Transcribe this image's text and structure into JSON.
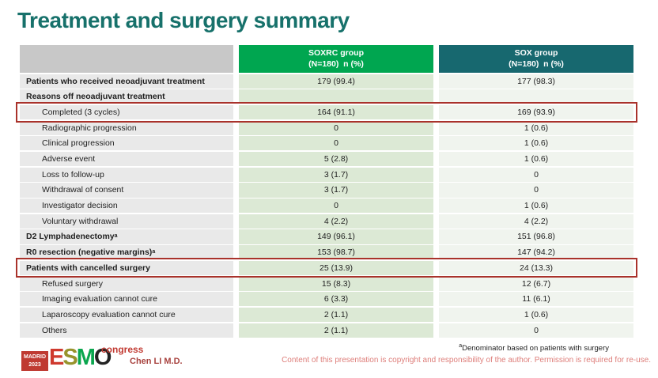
{
  "title": "Treatment and surgery summary",
  "colors": {
    "title": "#17716b",
    "soxrc_header": "#00a650",
    "sox_header": "#17686f",
    "label_header": "#c8c8c8",
    "label_cell": "#e9e9e9",
    "soxrc_cell": "#dce9d5",
    "sox_cell": "#f0f4ee",
    "highlight_border": "#a9322b",
    "badge_red": "#bf3a32",
    "copyright_pink": "#de7e7a"
  },
  "table": {
    "header": {
      "soxrc_name": "SOXRC group",
      "soxrc_sub": "(N=180)  n (%)",
      "sox_name": "SOX group",
      "sox_sub": "(N=180)  n (%)"
    },
    "rows": [
      {
        "label": "Patients who received neoadjuvant treatment",
        "sup": "",
        "bold": true,
        "indent": false,
        "highlight": false,
        "soxrc": "179 (99.4)",
        "sox": "177 (98.3)"
      },
      {
        "label": "Reasons off neoadjuvant treatment",
        "sup": "",
        "bold": true,
        "indent": false,
        "highlight": false,
        "soxrc": "",
        "sox": ""
      },
      {
        "label": "Completed (3 cycles)",
        "sup": "",
        "bold": false,
        "indent": true,
        "highlight": true,
        "soxrc": "164 (91.1)",
        "sox": "169 (93.9)"
      },
      {
        "label": "Radiographic progression",
        "sup": "",
        "bold": false,
        "indent": true,
        "highlight": false,
        "soxrc": "0",
        "sox": "1 (0.6)"
      },
      {
        "label": "Clinical progression",
        "sup": "",
        "bold": false,
        "indent": true,
        "highlight": false,
        "soxrc": "0",
        "sox": "1 (0.6)"
      },
      {
        "label": "Adverse event",
        "sup": "",
        "bold": false,
        "indent": true,
        "highlight": false,
        "soxrc": "5 (2.8)",
        "sox": "1 (0.6)"
      },
      {
        "label": "Loss to follow-up",
        "sup": "",
        "bold": false,
        "indent": true,
        "highlight": false,
        "soxrc": "3 (1.7)",
        "sox": "0"
      },
      {
        "label": "Withdrawal of consent",
        "sup": "",
        "bold": false,
        "indent": true,
        "highlight": false,
        "soxrc": "3 (1.7)",
        "sox": "0"
      },
      {
        "label": "Investigator decision",
        "sup": "",
        "bold": false,
        "indent": true,
        "highlight": false,
        "soxrc": "0",
        "sox": "1 (0.6)"
      },
      {
        "label": "Voluntary withdrawal",
        "sup": "",
        "bold": false,
        "indent": true,
        "highlight": false,
        "soxrc": "4 (2.2)",
        "sox": "4 (2.2)"
      },
      {
        "label": "D2 Lymphadenectomy",
        "sup": "a",
        "bold": true,
        "indent": false,
        "highlight": false,
        "soxrc": "149 (96.1)",
        "sox": "151 (96.8)"
      },
      {
        "label": "R0 resection (negative margins)",
        "sup": "a",
        "bold": true,
        "indent": false,
        "highlight": false,
        "soxrc": "153 (98.7)",
        "sox": "147 (94.2)"
      },
      {
        "label": "Patients with cancelled surgery",
        "sup": "",
        "bold": true,
        "indent": false,
        "highlight": true,
        "soxrc": "25 (13.9)",
        "sox": "24 (13.3)"
      },
      {
        "label": "Refused surgery",
        "sup": "",
        "bold": false,
        "indent": true,
        "highlight": false,
        "soxrc": "15 (8.3)",
        "sox": "12 (6.7)"
      },
      {
        "label": "Imaging evaluation cannot cure",
        "sup": "",
        "bold": false,
        "indent": true,
        "highlight": false,
        "soxrc": "6 (3.3)",
        "sox": "11 (6.1)"
      },
      {
        "label": "Laparoscopy evaluation cannot cure",
        "sup": "",
        "bold": false,
        "indent": true,
        "highlight": false,
        "soxrc": "2 (1.1)",
        "sox": "1 (0.6)"
      },
      {
        "label": "Others",
        "sup": "",
        "bold": false,
        "indent": true,
        "highlight": false,
        "soxrc": "2 (1.1)",
        "sox": "0"
      }
    ]
  },
  "footer": {
    "badge_line1": "MADRID",
    "badge_line2": "2023",
    "esmo_letters": [
      "E",
      "S",
      "M",
      "O"
    ],
    "congress": "congress",
    "presenter": "Chen LI M.D.",
    "footnote_sup": "a",
    "footnote": "Denominator based on patients with surgery",
    "copyright": "Content of this presentation is copyright and responsibility of the author. Permission is required for re-use."
  }
}
